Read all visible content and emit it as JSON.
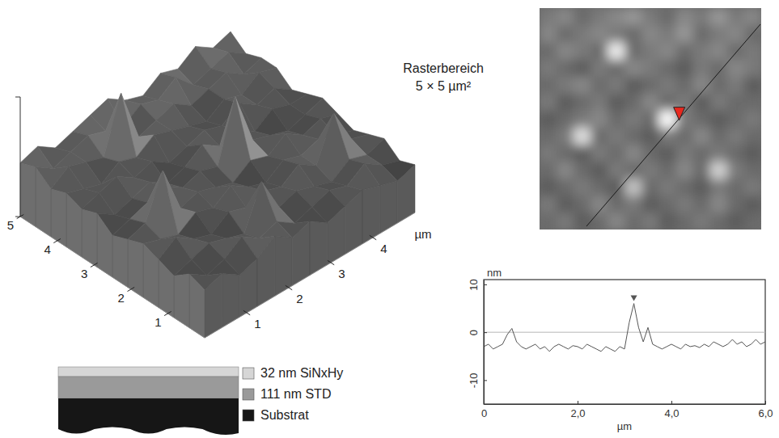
{
  "chart_data": [
    {
      "type": "surface",
      "x_label": "µm",
      "xlim": [
        0,
        5
      ],
      "xticks": [
        1,
        2,
        3,
        4
      ],
      "ylim": [
        0,
        5
      ],
      "yticks": [
        1,
        2,
        3,
        4,
        5
      ],
      "zlim": [
        0,
        20
      ],
      "z": [
        [
          8,
          9,
          7,
          8,
          10,
          8,
          9,
          7,
          8,
          9,
          8,
          7,
          8
        ],
        [
          9,
          7,
          8,
          10,
          8,
          9,
          7,
          8,
          9,
          8,
          10,
          8,
          7
        ],
        [
          7,
          8,
          9,
          8,
          7,
          14,
          8,
          9,
          8,
          7,
          9,
          8,
          9
        ],
        [
          8,
          10,
          8,
          7,
          9,
          8,
          9,
          8,
          10,
          8,
          15,
          9,
          8
        ],
        [
          9,
          8,
          7,
          9,
          8,
          10,
          8,
          7,
          9,
          8,
          9,
          8,
          7
        ],
        [
          8,
          9,
          16,
          8,
          9,
          8,
          7,
          9,
          8,
          10,
          8,
          9,
          8
        ],
        [
          7,
          8,
          9,
          10,
          8,
          9,
          8,
          18,
          9,
          8,
          7,
          8,
          9
        ],
        [
          9,
          7,
          8,
          9,
          7,
          8,
          10,
          8,
          9,
          7,
          9,
          8,
          8
        ],
        [
          8,
          9,
          10,
          8,
          9,
          7,
          8,
          9,
          8,
          10,
          8,
          9,
          7
        ],
        [
          9,
          8,
          7,
          9,
          8,
          10,
          9,
          8,
          7,
          9,
          8,
          10,
          9
        ],
        [
          8,
          10,
          9,
          8,
          17,
          8,
          9,
          10,
          8,
          9,
          10,
          8,
          9
        ],
        [
          10,
          8,
          9,
          10,
          9,
          8,
          10,
          9,
          11,
          8,
          9,
          10,
          8
        ],
        [
          9,
          10,
          8,
          9,
          10,
          11,
          9,
          8,
          10,
          9,
          11,
          9,
          10
        ]
      ]
    },
    {
      "type": "line",
      "x_label": "µm",
      "y_label": "nm",
      "x": [
        0,
        0.1,
        0.2,
        0.3,
        0.4,
        0.5,
        0.6,
        0.7,
        0.8,
        0.9,
        1,
        1.1,
        1.2,
        1.3,
        1.4,
        1.5,
        1.6,
        1.7,
        1.8,
        1.9,
        2,
        2.1,
        2.2,
        2.3,
        2.4,
        2.5,
        2.6,
        2.7,
        2.8,
        2.9,
        3,
        3.1,
        3.2,
        3.3,
        3.4,
        3.5,
        3.6,
        3.7,
        3.8,
        3.9,
        4,
        4.1,
        4.2,
        4.3,
        4.4,
        4.5,
        4.6,
        4.7,
        4.8,
        4.9,
        5,
        5.1,
        5.2,
        5.3,
        5.4,
        5.5,
        5.6,
        5.7,
        5.8,
        5.9,
        6
      ],
      "series": [
        {
          "color": "#555555",
          "values": [
            -3,
            -2.5,
            -3.5,
            -3,
            -2.5,
            -0.5,
            0.8,
            -2,
            -3,
            -3.5,
            -3,
            -2.5,
            -3.5,
            -3,
            -4,
            -3,
            -2.5,
            -3,
            -3.5,
            -2.8,
            -3,
            -3.5,
            -2.5,
            -3,
            -3.5,
            -4,
            -3,
            -3.5,
            -4,
            -3,
            -3.5,
            2,
            6,
            1,
            -2,
            1,
            -2.5,
            -3,
            -3.5,
            -3,
            -2.5,
            -3,
            -3.5,
            -2.5,
            -3,
            -2.8,
            -3.2,
            -2.5,
            -3,
            -2,
            -2.5,
            -3,
            -2.5,
            -1.5,
            -2.5,
            -2,
            -3,
            -2.5,
            -1.5,
            -2.5,
            -2
          ]
        }
      ],
      "xlim": [
        0,
        6
      ],
      "xticks": [
        0,
        {
          "value": 2,
          "label": "2,0"
        },
        {
          "value": 4,
          "label": "4,0"
        },
        {
          "value": 6,
          "label": "6,0"
        }
      ],
      "ylim": [
        -15,
        11
      ],
      "yticks": [
        -10,
        0,
        10
      ],
      "reference_y": 0,
      "cursor_x": 3.2
    }
  ],
  "scan_image": {
    "label": "Rasterbereich",
    "size_label": "5 × 5 µm²"
  },
  "layers": [
    {
      "label": "32 nm SiNxHy",
      "color": "#d6d6d6"
    },
    {
      "label": "111 nm STD",
      "color": "#9a9a9a"
    },
    {
      "label": "Substrat",
      "color": "#161616"
    }
  ]
}
